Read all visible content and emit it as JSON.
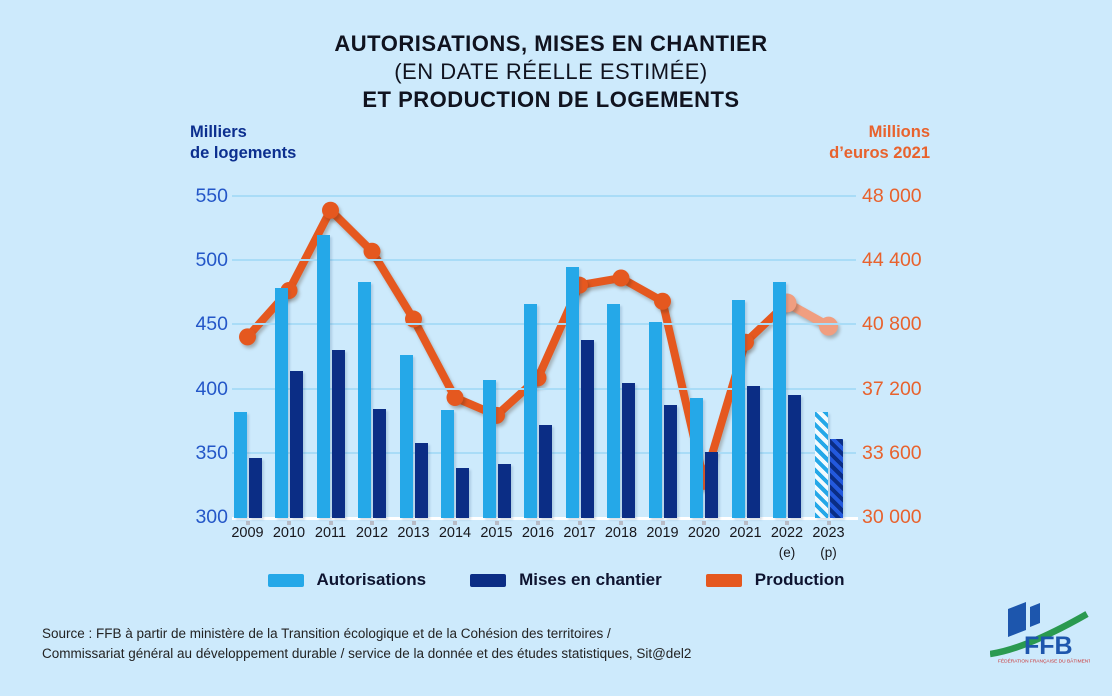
{
  "title": {
    "line1": "AUTORISATIONS, MISES EN CHANTIER",
    "line2": "(EN DATE RÉELLE ESTIMÉE)",
    "line3": "ET PRODUCTION DE LOGEMENTS"
  },
  "legend": {
    "items": [
      {
        "label": "Autorisations",
        "color": "#25a8e8"
      },
      {
        "label": "Mises en chantier",
        "color": "#0b2d85"
      },
      {
        "label": "Production",
        "color": "#e5581f"
      }
    ]
  },
  "source": {
    "line1": "Source : FFB à partir de ministère de la Transition écologique et de la Cohésion des territoires /",
    "line2": "Commissariat général au développement durable / service de la donnée et des études statistiques, Sit@del2"
  },
  "logo": {
    "text": "FFB",
    "caption": "FÉDÉRATION FRANÇAISE DU BÂTIMENT"
  },
  "colors": {
    "background": "#cdeafc",
    "gridline": "#a9dcf7",
    "bar_light": "#25a8e8",
    "bar_dark": "#0b2d85",
    "bar_hatch_light_alt": "#f2fafe",
    "bar_hatch_dark_main": "#2359dd",
    "line_main": "#e5581f",
    "line_forecast": "#f09e80",
    "left_axis_text": "#2457c8",
    "right_axis_text": "#e8622d",
    "left_header_text": "#0c2f8f"
  },
  "chart_data": {
    "type": "bar",
    "title": "Autorisations, mises en chantier (en date réelle estimée) et production de logements",
    "categories": [
      "2009",
      "2010",
      "2011",
      "2012",
      "2013",
      "2014",
      "2015",
      "2016",
      "2017",
      "2018",
      "2019",
      "2020",
      "2021",
      "2022",
      "2023"
    ],
    "category_sublabels": [
      "",
      "",
      "",
      "",
      "",
      "",
      "",
      "",
      "",
      "",
      "",
      "",
      "",
      "(e)",
      "(p)"
    ],
    "series": [
      {
        "name": "Autorisations",
        "type": "bar",
        "axis": "left",
        "values": [
          382,
          478,
          520,
          483,
          426,
          383,
          407,
          466,
          495,
          466,
          452,
          393,
          469,
          483,
          382
        ]
      },
      {
        "name": "Mises en chantier",
        "type": "bar",
        "axis": "left",
        "values": [
          346,
          414,
          430,
          384,
          358,
          338,
          341,
          372,
          438,
          404,
          387,
          351,
          402,
          395,
          361
        ]
      },
      {
        "name": "Production",
        "type": "line",
        "axis": "right",
        "values": [
          40100,
          42700,
          47200,
          44900,
          41100,
          36700,
          35700,
          37800,
          43000,
          43400,
          42100,
          32000,
          39800,
          42000,
          40700
        ]
      }
    ],
    "projection_last_n": 1,
    "forecast_segment_from_index": 13,
    "left_axis": {
      "title_line1": "Milliers",
      "title_line2": "de logements",
      "min": 300,
      "max": 550,
      "ticks": [
        300,
        350,
        400,
        450,
        500,
        550
      ],
      "tick_labels": [
        "300",
        "350",
        "400",
        "450",
        "500",
        "550"
      ]
    },
    "right_axis": {
      "title_line1": "Millions",
      "title_line2": "d’euros 2021",
      "min": 30000,
      "max": 48000,
      "ticks": [
        30000,
        33600,
        37200,
        40800,
        44400,
        48000
      ],
      "tick_labels": [
        "30 000",
        "33 600",
        "37 200",
        "40 800",
        "44 400",
        "48 000"
      ]
    },
    "grid": true,
    "legend_position": "bottom"
  }
}
